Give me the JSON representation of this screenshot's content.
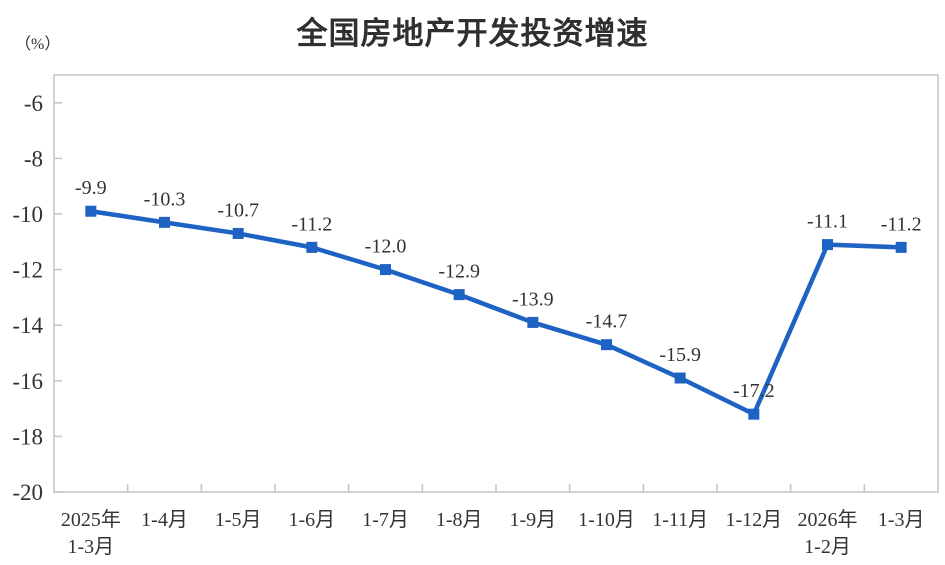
{
  "chart_data": {
    "type": "line",
    "title": "全国房地产开发投资增速",
    "unit": "（%）",
    "categories": [
      "2025年\n1-3月",
      "1-4月",
      "1-5月",
      "1-6月",
      "1-7月",
      "1-8月",
      "1-9月",
      "1-10月",
      "1-11月",
      "1-12月",
      "2026年\n1-2月",
      "1-3月"
    ],
    "series": [
      {
        "name": "全国房地产开发投资增速",
        "values": [
          -9.9,
          -10.3,
          -10.7,
          -11.2,
          -12.0,
          -12.9,
          -13.9,
          -14.7,
          -15.9,
          -17.2,
          -11.1,
          -11.2
        ]
      }
    ],
    "data_labels": [
      "-9.9",
      "-10.3",
      "-10.7",
      "-11.2",
      "-12.0",
      "-12.9",
      "-13.9",
      "-14.7",
      "-15.9",
      "-17.2",
      "-11.1",
      "-11.2"
    ],
    "xlabel": "",
    "ylabel": "（%）",
    "ylim": [
      -20,
      -5
    ],
    "yticks": [
      -6,
      -8,
      -10,
      -12,
      -14,
      -16,
      -18,
      -20
    ],
    "grid": false,
    "legend_position": "none",
    "line_color": "#1E63C3",
    "marker": "square",
    "frame_color": "#c6c6c6",
    "text_color": "#333333"
  }
}
